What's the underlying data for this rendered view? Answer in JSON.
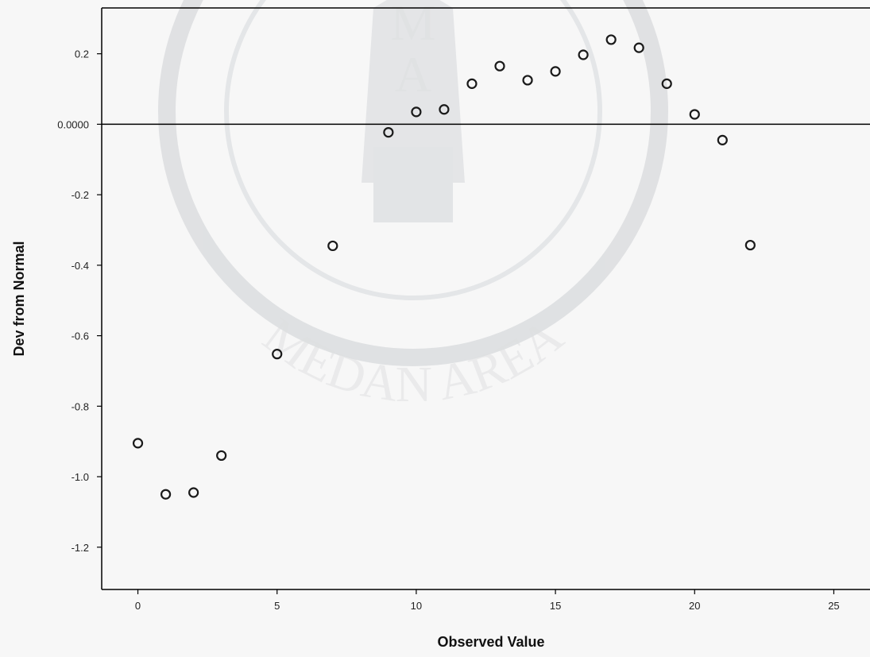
{
  "chart_data": {
    "type": "scatter",
    "title": "",
    "xlabel": "Observed Value",
    "ylabel": "Dev from Normal",
    "xlim": [
      -1.3,
      26.3
    ],
    "ylim": [
      -1.32,
      0.33
    ],
    "x_ticks": [
      0,
      5,
      10,
      15,
      20,
      25
    ],
    "x_tick_labels": [
      "0",
      "5",
      "10",
      "15",
      "20",
      "25"
    ],
    "y_ticks": [
      0.2,
      0.0,
      -0.2,
      -0.4,
      -0.6,
      -0.8,
      -1.0,
      -1.2
    ],
    "y_tick_labels": [
      "0.2",
      "0.0000",
      "-0.2",
      "-0.4",
      "-0.6",
      "-0.8",
      "-1.0",
      "-1.2"
    ],
    "reference_line_y": 0.0,
    "grid": false,
    "series": [
      {
        "x": [
          0,
          1,
          2,
          3,
          5,
          7,
          9,
          10,
          11,
          12,
          13,
          14,
          15,
          16,
          17,
          18,
          19,
          20,
          21,
          22
        ],
        "y": [
          -0.905,
          -1.05,
          -1.045,
          -0.94,
          -0.652,
          -0.345,
          -0.023,
          0.035,
          0.042,
          0.115,
          0.165,
          0.125,
          0.15,
          0.197,
          0.24,
          0.217,
          0.115,
          0.028,
          -0.045,
          -0.343
        ]
      }
    ],
    "colors": {
      "marker": "#1a1a1a",
      "axis": "#000000",
      "background": "#f7f7f7"
    }
  },
  "watermark": {
    "text": "MEDAN AREA",
    "letters": [
      "M",
      "A"
    ]
  }
}
